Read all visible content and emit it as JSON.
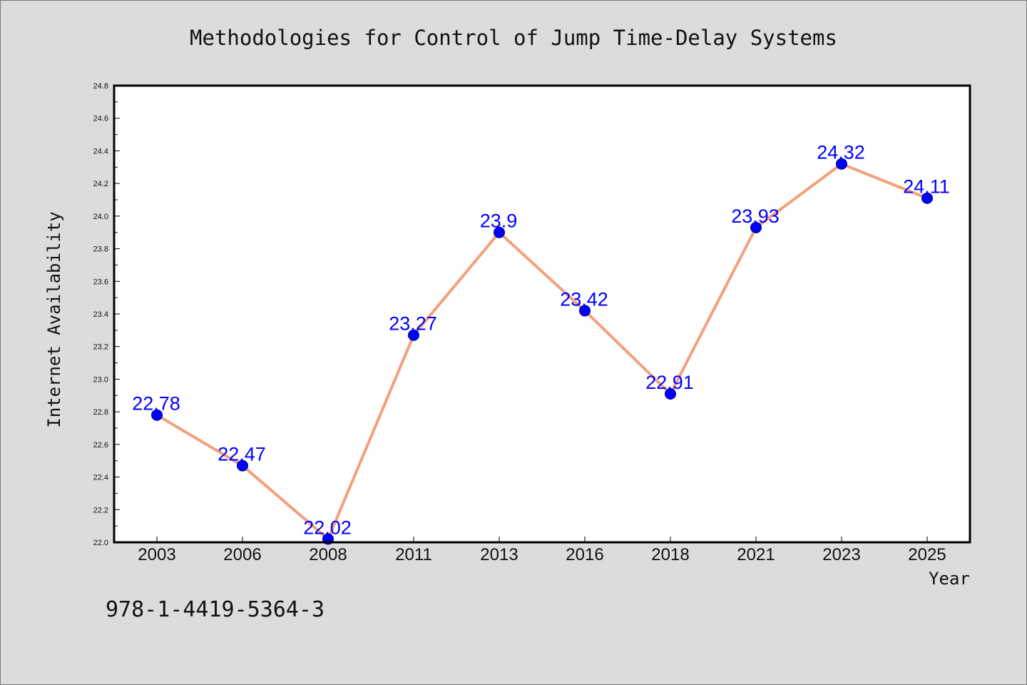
{
  "chart_data": {
    "type": "line",
    "title": "Methodologies for Control of Jump Time-Delay Systems",
    "xlabel": "Year",
    "ylabel": "Internet Availability",
    "x": [
      "2003",
      "2006",
      "2008",
      "2011",
      "2013",
      "2016",
      "2018",
      "2021",
      "2023",
      "2025"
    ],
    "series": [
      {
        "values": [
          22.78,
          22.47,
          22.02,
          23.27,
          23.9,
          23.42,
          22.91,
          23.93,
          24.32,
          24.11
        ],
        "data_labels": [
          "22.78",
          "22.47",
          "22.02",
          "23.27",
          "23.9",
          "23.42",
          "22.91",
          "23.93",
          "24.32",
          "24.11"
        ],
        "line_color": "#f4a07c",
        "marker_color": "#0000ff"
      }
    ],
    "ylim": [
      22.0,
      24.8
    ],
    "yticks": [
      "22.0",
      "22.2",
      "22.4",
      "22.6",
      "22.8",
      "23.0",
      "23.2",
      "23.4",
      "23.6",
      "23.8",
      "24.0",
      "24.2",
      "24.4",
      "24.6",
      "24.8"
    ],
    "label_color": "#0000ff",
    "background": "#dcdcdc",
    "plot_background": "#ffffff",
    "grid": false,
    "legend": false
  },
  "footer_text": "978-1-4419-5364-3"
}
